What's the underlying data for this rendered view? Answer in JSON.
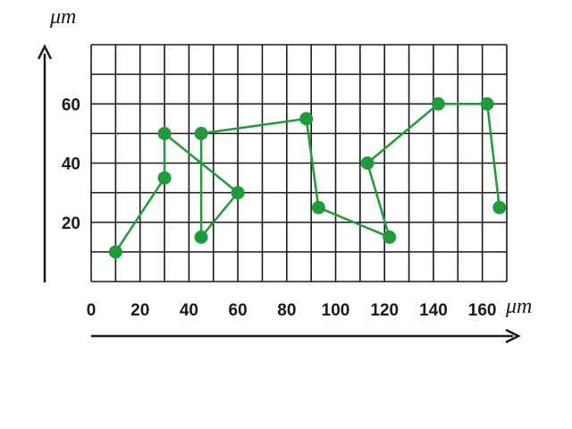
{
  "chart_data": {
    "type": "line",
    "x_unit_label": "μm",
    "y_unit_label": "μm",
    "xlim": [
      0,
      170
    ],
    "ylim": [
      0,
      80
    ],
    "x_ticks": [
      0,
      20,
      40,
      60,
      80,
      100,
      120,
      140,
      160
    ],
    "y_ticks": [
      20,
      40,
      60
    ],
    "grid": true,
    "colors": {
      "series": "#1f9a3c",
      "grid": "#1a1a1a",
      "axes": "#1a1a1a"
    },
    "series": [
      {
        "x": [
          10,
          30,
          30,
          60,
          45,
          45,
          88,
          93,
          122,
          113,
          142,
          162,
          167
        ],
        "y": [
          10,
          35,
          50,
          30,
          15,
          50,
          55,
          25,
          15,
          40,
          60,
          60,
          25
        ]
      }
    ]
  }
}
